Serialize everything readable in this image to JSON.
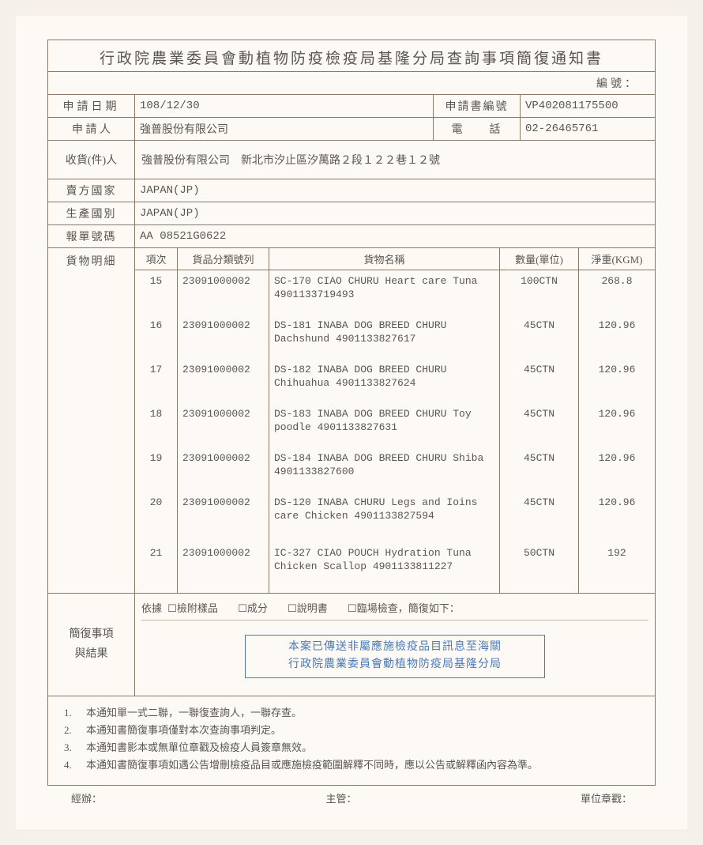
{
  "title": "行政院農業委員會動植物防疫檢疫局基隆分局查詢事項簡復通知書",
  "ref_label": "編號：",
  "labels": {
    "apply_date": "申請日期",
    "applicant": "申 請 人",
    "form_no": "申請書編號",
    "phone": "電　　話",
    "recipient": "收貨(件)人",
    "seller_country": "賣方國家",
    "prod_country": "生產國別",
    "decl_no": "報單號碼",
    "goods": "貨物明細",
    "item": "項次",
    "class": "貨品分類號列",
    "name": "貨物名稱",
    "qty": "數量(單位)",
    "weight": "淨重(KGM)",
    "reply": "簡復事項\n與結果",
    "basis": "依據",
    "chk1": "檢附樣品",
    "chk2": "成分",
    "chk3": "說明書",
    "chk4": "臨場檢查，簡復如下：",
    "handler": "經辦：",
    "supervisor": "主管：",
    "seal": "單位章戳："
  },
  "values": {
    "apply_date": "108/12/30",
    "form_no": "VP402081175500",
    "applicant": "強普股份有限公司",
    "phone": "02-26465761",
    "recipient": "強普股份有限公司　新北市汐止區汐萬路２段１２２巷１２號",
    "seller_country": "JAPAN(JP)",
    "prod_country": "JAPAN(JP)",
    "decl_no": "AA  08521G0622"
  },
  "goods": [
    {
      "no": "15",
      "cls": "23091000002",
      "name": "SC-170 CIAO CHURU Heart care Tuna 4901133719493",
      "qty": "100CTN",
      "wt": "268.8",
      "lines": 2
    },
    {
      "no": "16",
      "cls": "23091000002",
      "name": "DS-181 INABA DOG BREED CHURU Dachshund 4901133827617",
      "qty": "45CTN",
      "wt": "120.96",
      "lines": 2
    },
    {
      "no": "17",
      "cls": "23091000002",
      "name": "DS-182 INABA DOG BREED CHURU Chihuahua 4901133827624",
      "qty": "45CTN",
      "wt": "120.96",
      "lines": 2
    },
    {
      "no": "18",
      "cls": "23091000002",
      "name": "DS-183 INABA DOG BREED CHURU Toy poodle 4901133827631",
      "qty": "45CTN",
      "wt": "120.96",
      "lines": 2
    },
    {
      "no": "19",
      "cls": "23091000002",
      "name": "DS-184 INABA DOG BREED CHURU Shiba 4901133827600",
      "qty": "45CTN",
      "wt": "120.96",
      "lines": 2
    },
    {
      "no": "20",
      "cls": "23091000002",
      "name": "DS-120 INABA CHURU Legs and Ioins care Chicken 4901133827594",
      "qty": "45CTN",
      "wt": "120.96",
      "lines": 3
    },
    {
      "no": "21",
      "cls": "23091000002",
      "name": "IC-327 CIAO POUCH Hydration Tuna Chicken Scallop 4901133811227",
      "qty": "50CTN",
      "wt": "192",
      "lines": 3
    }
  ],
  "stamp": {
    "line1": "本案已傳送非屬應施檢疫品目訊息至海關",
    "line2": "行政院農業委員會動植物防疫局基隆分局"
  },
  "notes": [
    "本通知單一式二聯，一聯復查詢人，一聯存查。",
    "本通知書簡復事項僅對本次查詢事項判定。",
    "本通知書影本或無單位章戳及檢疫人員簽章無效。",
    "本通知書簡復事項如遇公告增刪檢疫品目或應施檢疫範圍解釋不同時，應以公告或解釋函內容為準。"
  ],
  "colors": {
    "border": "#8a7a6a",
    "text": "#5a5550",
    "stamp": "#4a7ab5",
    "bg": "#fdfaf5"
  }
}
